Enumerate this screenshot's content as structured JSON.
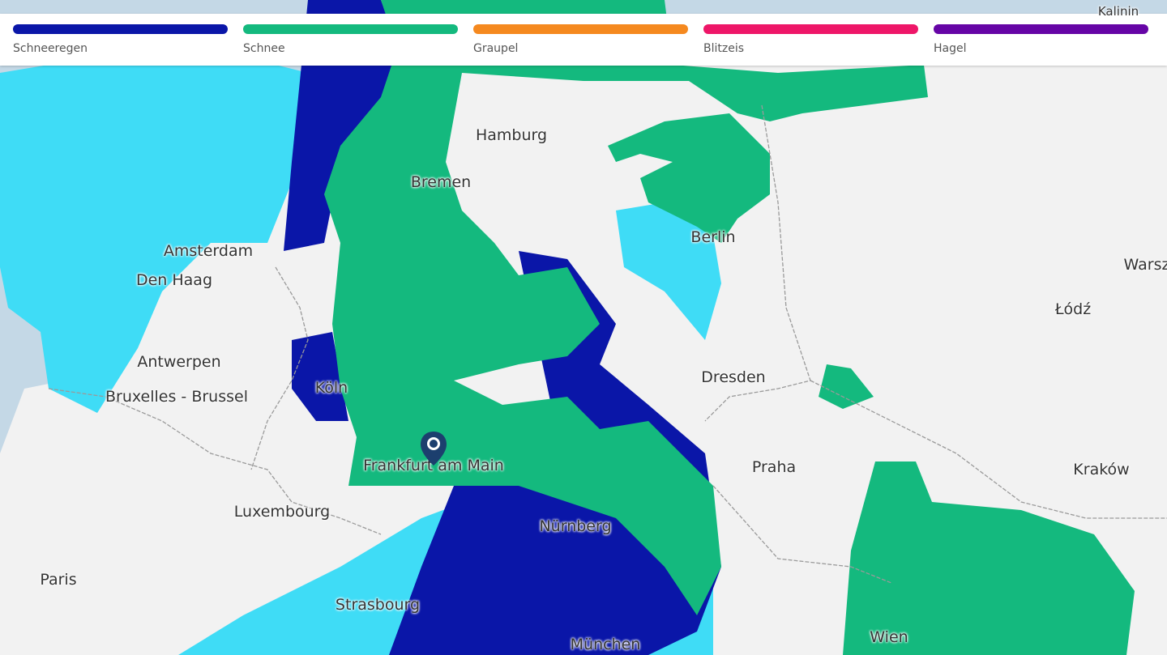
{
  "legend": {
    "items": [
      {
        "label": "Schneeregen",
        "color": "#0a16a8"
      },
      {
        "label": "Schnee",
        "color": "#14b97e"
      },
      {
        "label": "Graupel",
        "color": "#f5891f"
      },
      {
        "label": "Blitzeis",
        "color": "#ee1668"
      },
      {
        "label": "Hagel",
        "color": "#6605a6"
      }
    ]
  },
  "map": {
    "colors": {
      "land": "#f2f2f2",
      "sea": "#c4d8e6",
      "rain_light": "#3fdcf6",
      "border": "#9a9a9a"
    },
    "cities": [
      {
        "name": "Hamburg"
      },
      {
        "name": "Bremen"
      },
      {
        "name": "Berlin"
      },
      {
        "name": "Amsterdam"
      },
      {
        "name": "Den Haag"
      },
      {
        "name": "Warsz"
      },
      {
        "name": "Łódź"
      },
      {
        "name": "Antwerpen"
      },
      {
        "name": "Köln"
      },
      {
        "name": "Dresden"
      },
      {
        "name": "Bruxelles - Brussel"
      },
      {
        "name": "Frankfurt am Main"
      },
      {
        "name": "Praha"
      },
      {
        "name": "Kraków"
      },
      {
        "name": "Luxembourg"
      },
      {
        "name": "Nürnberg"
      },
      {
        "name": "Paris"
      },
      {
        "name": "Strasbourg"
      },
      {
        "name": "Wien"
      },
      {
        "name": "München"
      },
      {
        "name": "Kalinin"
      }
    ],
    "marker_icon": "location-pin-icon"
  }
}
